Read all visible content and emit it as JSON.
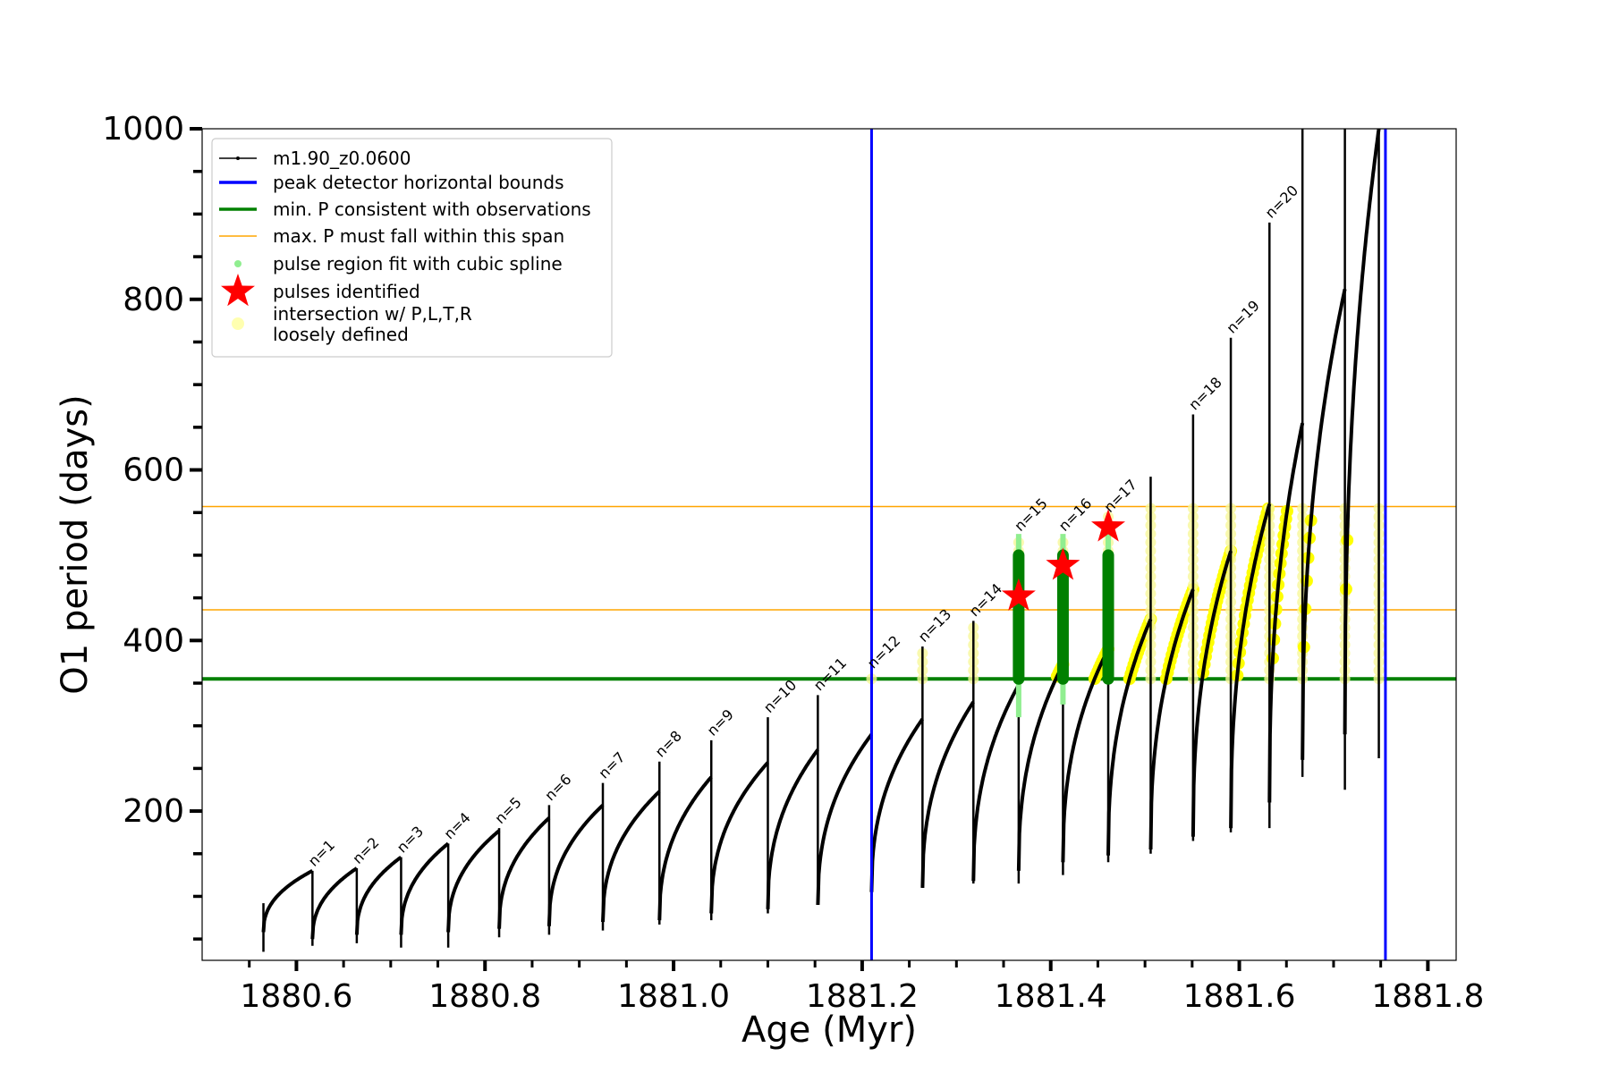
{
  "chart_data": {
    "type": "line",
    "xlabel": "Age (Myr)",
    "ylabel": "O1 period (days)",
    "xlim": [
      1880.5,
      1881.83
    ],
    "ylim": [
      25,
      1000
    ],
    "xticks": [
      1880.6,
      1880.8,
      1881.0,
      1881.2,
      1881.4,
      1881.6,
      1881.8
    ],
    "xtick_labels": [
      "1880.6",
      "1880.8",
      "1881.0",
      "1881.2",
      "1881.4",
      "1881.6",
      "1881.8"
    ],
    "yticks": [
      200,
      400,
      600,
      800,
      1000
    ],
    "ytick_labels": [
      "200",
      "400",
      "600",
      "800",
      "1000"
    ],
    "legend": {
      "placement": "top-left",
      "entries": [
        {
          "label": "m1.90_z0.0600",
          "color": "#000000",
          "kind": "line-dot"
        },
        {
          "label": "peak detector horizontal bounds",
          "color": "#0000ff",
          "kind": "line"
        },
        {
          "label": "min. P consistent with observations",
          "color": "#008000",
          "kind": "line"
        },
        {
          "label": "max. P must fall within this span",
          "color": "#ffa500",
          "kind": "thin-line"
        },
        {
          "label": "pulse region fit with cubic spline",
          "color": "#90ee90",
          "kind": "dot"
        },
        {
          "label": "pulses identified",
          "color": "#ff0000",
          "kind": "star"
        },
        {
          "label": "intersection w/ P,L,T,R",
          "label2": "loosely defined",
          "color": "#ffffb0",
          "kind": "big-dot"
        }
      ]
    },
    "vertical_lines": [
      {
        "x": 1881.21,
        "color": "#0000ff"
      },
      {
        "x": 1881.755,
        "color": "#0000ff"
      }
    ],
    "horizontal_lines": [
      {
        "y": 355,
        "color": "#008000",
        "width": 4
      },
      {
        "y": 557,
        "color": "#ffa500",
        "width": 1.5
      },
      {
        "y": 436,
        "color": "#ffa500",
        "width": 1.5
      }
    ],
    "pulses": [
      {
        "n": 1,
        "label": "n=1",
        "x": 1880.617,
        "start": 1880.565,
        "pmin": 58,
        "pmax": 130,
        "spike": 130,
        "drop": 42
      },
      {
        "n": 2,
        "label": "n=2",
        "x": 1880.664,
        "pmin": 50,
        "pmax": 133,
        "spike": 133,
        "drop": 45
      },
      {
        "n": 3,
        "label": "n=3",
        "x": 1880.711,
        "pmin": 55,
        "pmax": 146,
        "spike": 146,
        "drop": 40
      },
      {
        "n": 4,
        "label": "n=4",
        "x": 1880.761,
        "pmin": 55,
        "pmax": 162,
        "spike": 162,
        "drop": 40
      },
      {
        "n": 5,
        "label": "n=5",
        "x": 1880.815,
        "pmin": 58,
        "pmax": 177,
        "spike": 180,
        "drop": 52
      },
      {
        "n": 6,
        "label": "n=6",
        "x": 1880.868,
        "pmin": 62,
        "pmax": 192,
        "spike": 207,
        "drop": 55
      },
      {
        "n": 7,
        "label": "n=7",
        "x": 1880.925,
        "pmin": 65,
        "pmax": 207,
        "spike": 233,
        "drop": 60
      },
      {
        "n": 8,
        "label": "n=8",
        "x": 1880.985,
        "pmin": 70,
        "pmax": 223,
        "spike": 258,
        "drop": 67
      },
      {
        "n": 9,
        "label": "n=9",
        "x": 1881.04,
        "pmin": 72,
        "pmax": 240,
        "spike": 283,
        "drop": 72
      },
      {
        "n": 10,
        "label": "n=10",
        "x": 1881.1,
        "pmin": 80,
        "pmax": 257,
        "spike": 310,
        "drop": 80
      },
      {
        "n": 11,
        "label": "n=11",
        "x": 1881.153,
        "pmin": 85,
        "pmax": 272,
        "spike": 336,
        "drop": 90
      },
      {
        "n": 12,
        "label": "n=12",
        "x": 1881.21,
        "pmin": 90,
        "pmax": 290,
        "spike": 362,
        "drop": 100
      },
      {
        "n": 13,
        "label": "n=13",
        "x": 1881.264,
        "pmin": 105,
        "pmax": 308,
        "spike": 393,
        "drop": 110
      },
      {
        "n": 14,
        "label": "n=14",
        "x": 1881.318,
        "pmin": 110,
        "pmax": 328,
        "spike": 423,
        "drop": 115
      },
      {
        "n": 15,
        "label": "n=15",
        "x": 1881.366,
        "pmin": 118,
        "pmax": 348,
        "spike": 523,
        "drop": 115
      },
      {
        "n": 16,
        "label": "n=16",
        "x": 1881.413,
        "pmin": 130,
        "pmax": 372,
        "spike": 523,
        "drop": 125
      },
      {
        "n": 17,
        "label": "n=17",
        "x": 1881.461,
        "pmin": 140,
        "pmax": 390,
        "spike": 545,
        "drop": 140
      },
      {
        "n": 18,
        "label": "n=18",
        "x": 1881.551,
        "pmin": 155,
        "pmax": 460,
        "spike": 665,
        "drop": 165
      },
      {
        "n": 19,
        "label": "n=19",
        "x": 1881.591,
        "pmin": 170,
        "pmax": 505,
        "spike": 755,
        "drop": 175
      },
      {
        "n": 20,
        "label": "n=20",
        "x": 1881.632,
        "pmin": 180,
        "pmax": 560,
        "spike": 890,
        "drop": 180
      }
    ],
    "late_pulses": [
      {
        "x": 1881.506,
        "pmin": 148,
        "pmax": 425,
        "spike": 592,
        "drop": 150
      },
      {
        "x": 1881.667,
        "pmin": 210,
        "pmax": 655,
        "spike": 1000,
        "drop": 240
      },
      {
        "x": 1881.712,
        "pmin": 260,
        "pmax": 812,
        "spike": 1000,
        "drop": 225
      },
      {
        "x": 1881.748,
        "pmin": 290,
        "pmax": 1000,
        "spike": 1000,
        "drop": 262
      }
    ],
    "pulses_identified": [
      {
        "x": 1881.366,
        "y": 452
      },
      {
        "x": 1881.413,
        "y": 488
      },
      {
        "x": 1881.461,
        "y": 533
      }
    ],
    "spline_regions": [
      {
        "x": 1881.366,
        "ymin": 310,
        "ymax": 500
      },
      {
        "x": 1881.413,
        "ymin": 325,
        "ymax": 500
      },
      {
        "x": 1881.461,
        "ymin": 355,
        "ymax": 500
      }
    ]
  }
}
